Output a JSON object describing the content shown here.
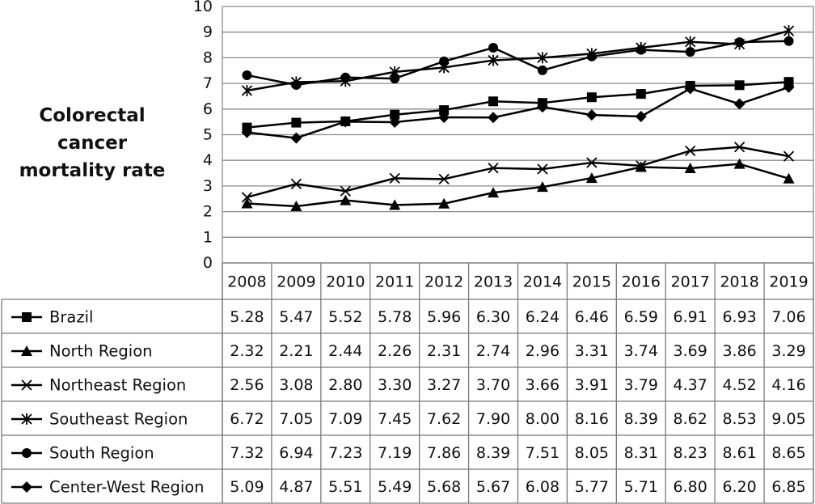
{
  "chart_data": {
    "type": "line",
    "ylabel_lines": [
      "Colorectal",
      "cancer",
      "mortality rate"
    ],
    "x": [
      "2008",
      "2009",
      "2010",
      "2011",
      "2012",
      "2013",
      "2014",
      "2015",
      "2016",
      "2017",
      "2018",
      "2019"
    ],
    "ylim": [
      0,
      10
    ],
    "y_ticks": [
      "0",
      "1",
      "2",
      "3",
      "4",
      "5",
      "6",
      "7",
      "8",
      "9",
      "10"
    ],
    "grid": "horizontal",
    "legend": "table-left",
    "color": "#000000",
    "series": [
      {
        "name": "Brazil",
        "marker": "square",
        "values": [
          5.28,
          5.47,
          5.52,
          5.78,
          5.96,
          6.3,
          6.24,
          6.46,
          6.59,
          6.91,
          6.93,
          7.06
        ],
        "labels": [
          "5.28",
          "5.47",
          "5.52",
          "5.78",
          "5.96",
          "6.30",
          "6.24",
          "6.46",
          "6.59",
          "6.91",
          "6.93",
          "7.06"
        ]
      },
      {
        "name": "North Region",
        "marker": "triangle",
        "values": [
          2.32,
          2.21,
          2.44,
          2.26,
          2.31,
          2.74,
          2.96,
          3.31,
          3.74,
          3.69,
          3.86,
          3.29
        ],
        "labels": [
          "2.32",
          "2.21",
          "2.44",
          "2.26",
          "2.31",
          "2.74",
          "2.96",
          "3.31",
          "3.74",
          "3.69",
          "3.86",
          "3.29"
        ]
      },
      {
        "name": "Northeast Region",
        "marker": "x",
        "values": [
          2.56,
          3.08,
          2.8,
          3.3,
          3.27,
          3.7,
          3.66,
          3.91,
          3.79,
          4.37,
          4.52,
          4.16
        ],
        "labels": [
          "2.56",
          "3.08",
          "2.80",
          "3.30",
          "3.27",
          "3.70",
          "3.66",
          "3.91",
          "3.79",
          "4.37",
          "4.52",
          "4.16"
        ]
      },
      {
        "name": "Southeast Region",
        "marker": "star",
        "values": [
          6.72,
          7.05,
          7.09,
          7.45,
          7.62,
          7.9,
          8.0,
          8.16,
          8.39,
          8.62,
          8.53,
          9.05
        ],
        "labels": [
          "6.72",
          "7.05",
          "7.09",
          "7.45",
          "7.62",
          "7.90",
          "8.00",
          "8.16",
          "8.39",
          "8.62",
          "8.53",
          "9.05"
        ]
      },
      {
        "name": "South Region",
        "marker": "circle",
        "values": [
          7.32,
          6.94,
          7.23,
          7.19,
          7.86,
          8.39,
          7.51,
          8.05,
          8.31,
          8.23,
          8.61,
          8.65
        ],
        "labels": [
          "7.32",
          "6.94",
          "7.23",
          "7.19",
          "7.86",
          "8.39",
          "7.51",
          "8.05",
          "8.31",
          "8.23",
          "8.61",
          "8.65"
        ]
      },
      {
        "name": "Center-West Region",
        "marker": "diamond",
        "values": [
          5.09,
          4.87,
          5.51,
          5.49,
          5.68,
          5.67,
          6.08,
          5.77,
          5.71,
          6.8,
          6.2,
          6.85
        ],
        "labels": [
          "5.09",
          "4.87",
          "5.51",
          "5.49",
          "5.68",
          "5.67",
          "6.08",
          "5.77",
          "5.71",
          "6.80",
          "6.20",
          "6.85"
        ]
      }
    ]
  }
}
